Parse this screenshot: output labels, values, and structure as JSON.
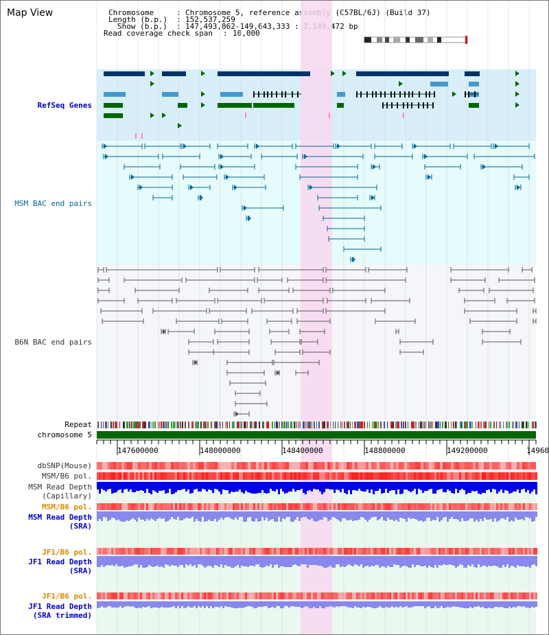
{
  "page_title": "Map View",
  "info": {
    "chromosome_label": "Chromosome",
    "chromosome_value": "Chromosome 5, reference assembly (C57BL/6J) (Build 37)",
    "length_label": "Length (b.p.)",
    "length_value": "152,537,259",
    "show_label": "Show (b.p.)",
    "show_value": "147,493,862-149,643,333 : 2,149,472 bp",
    "coverage_label": "Read coverage check span",
    "coverage_value": "10,000"
  },
  "tracks": {
    "refseq": "RefSeq Genes",
    "msm_bac": "MSM BAC end pairs",
    "b6n_bac": "B6N BAC end pairs",
    "repeat": "Repeat",
    "chromosome": "chromosome 5",
    "dbsnp": "dbSNP(Mouse)",
    "msm_b6_pol_1": "MSM/B6 pol.",
    "msm_depth_cap_1": "MSM Read Depth",
    "msm_depth_cap_2": "(Capillary)",
    "msm_b6_pol_2": "MSM/B6 pol.",
    "msm_depth_sra_1": "MSM Read Depth",
    "msm_depth_sra_2": "(SRA)",
    "jf1_pol_1": "JF1/B6 pol.",
    "jf1_depth_sra_1": "JF1 Read Depth",
    "jf1_depth_sra_2": "(SRA)",
    "jf1_pol_2": "JF1/B6 pol.",
    "jf1_depth_trim_1": "JF1 Read Depth",
    "jf1_depth_trim_2": "(SRA trimmed)"
  },
  "axis_ticks": [
    "147600000",
    "148000000",
    "148400000",
    "148800000",
    "149200000",
    "14960"
  ],
  "colors": {
    "refseq_dark": "#003366",
    "refseq_light": "#4499cc",
    "refseq_green": "#006600",
    "refseq_bg": "#d8eef8",
    "msm_bac_line": "#006699",
    "msm_bac_bg": "#e6fbfb",
    "b6n_bac_line": "#555555",
    "b6n_bac_bg": "#f4f6fa",
    "highlight": "#f8d8f0",
    "chromosome_bar": "#006600",
    "snp_red": "#ff5050",
    "depth_blue": "#0000ee",
    "depth_sra": "#8888ee",
    "lower_bg": "#eaf8f0"
  }
}
